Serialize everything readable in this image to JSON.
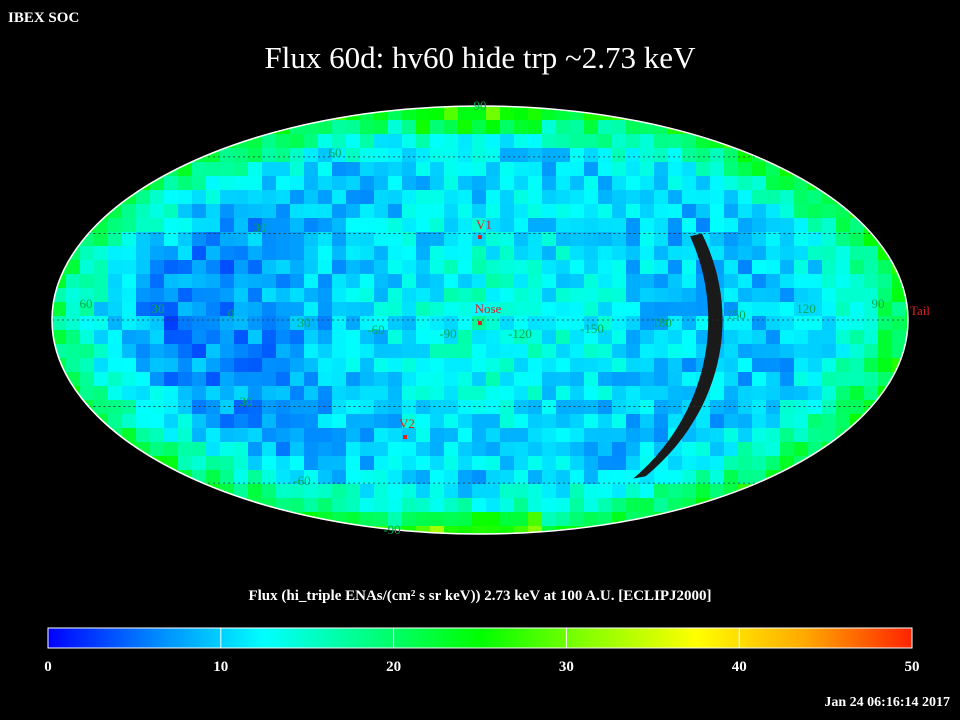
{
  "header": {
    "source": "IBEX SOC",
    "title": "Flux   60d: hv60 hide trp ~2.73 keV",
    "timestamp": "Jan 24 06:16:14 2017"
  },
  "chart_data": {
    "type": "heatmap",
    "projection": "Mollweide (all-sky)",
    "frame": "ECLIPJ2000",
    "colorbar": {
      "title": "Flux (hi_triple ENAs/(cm² s sr keV))  2.73 keV at 100 A.U. [ECLIPJ2000]",
      "range": [
        0,
        50
      ],
      "ticks": [
        "0",
        "10",
        "20",
        "30",
        "40",
        "50"
      ],
      "colors": [
        "#0000ff",
        "#0088ff",
        "#00ffff",
        "#00ff80",
        "#00ff00",
        "#88ff00",
        "#ffff00",
        "#ffaa00",
        "#ff2200"
      ]
    },
    "longitude_labels": [
      "30",
      "0",
      "30",
      "-60",
      "-90",
      "-120",
      "-150",
      "180",
      "150",
      "120",
      "90",
      "60"
    ],
    "latitude_labels": [
      "60",
      "30",
      "30",
      "-60",
      "-90",
      "90"
    ],
    "markers": [
      {
        "label": "V1",
        "lon": 0,
        "lat": 35
      },
      {
        "label": "Nose",
        "lon": 0,
        "lat": 5
      },
      {
        "label": "V2",
        "lon": -35,
        "lat": -34
      },
      {
        "label": "Tail",
        "lon": 180,
        "lat": 0
      }
    ],
    "typical_flux_range": [
      5,
      22
    ],
    "flux_distribution": {
      "left_hemisphere": "low (mostly 4-10, deep blue)",
      "center_near_nose": "moderate (12-18, cyan-green)",
      "limb": "elevated (20-38, green to yellow)"
    },
    "data_gaps": "black unobserved swaths along ecliptic longitude strips"
  }
}
